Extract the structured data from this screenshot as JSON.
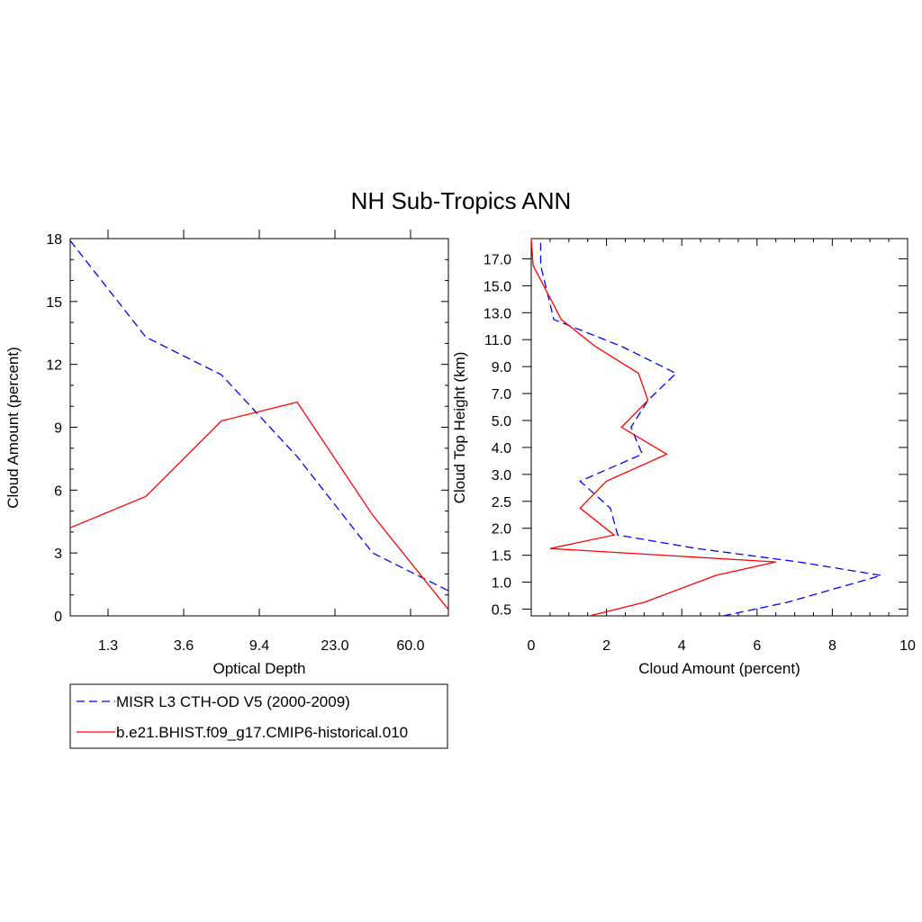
{
  "title": "NH Sub-Tropics ANN",
  "colors": {
    "obs": "#0000ff",
    "model": "#ff0000",
    "axis": "#000000"
  },
  "legend": {
    "placement": "bottom-left",
    "entries": [
      {
        "label": "MISR L3 CTH-OD V5 (2000-2009)",
        "color": "#0000ff",
        "dash": "dashed"
      },
      {
        "label": "b.e21.BHIST.f09_g17.CMIP6-historical.010",
        "color": "#ff0000",
        "dash": "solid"
      }
    ]
  },
  "chart_data": [
    {
      "type": "line",
      "xlabel": "Optical Depth",
      "ylabel": "Cloud Amount (percent)",
      "x_tick_labels": [
        "1.3",
        "3.6",
        "9.4",
        "23.0",
        "60.0"
      ],
      "x_tick_index": [
        0.5,
        1.5,
        2.5,
        3.5,
        4.5
      ],
      "xlim": [
        0,
        5
      ],
      "ylim": [
        0,
        18
      ],
      "y_ticks": [
        0,
        3,
        6,
        9,
        12,
        15,
        18
      ],
      "x_index": [
        0,
        1,
        2,
        3,
        4,
        5
      ],
      "series": [
        {
          "name": "MISR L3 CTH-OD V5 (2000-2009)",
          "values": [
            17.9,
            13.3,
            11.5,
            7.6,
            3.0,
            1.2
          ]
        },
        {
          "name": "b.e21.BHIST.f09_g17.CMIP6-historical.010",
          "values": [
            4.2,
            5.7,
            9.3,
            10.2,
            4.8,
            0.3
          ]
        }
      ]
    },
    {
      "type": "line",
      "xlabel": "Cloud Amount (percent)",
      "ylabel": "Cloud Top Height (km)",
      "xlim": [
        0,
        10
      ],
      "x_ticks": [
        0,
        2,
        4,
        6,
        8,
        10
      ],
      "y_tick_labels": [
        "0.5",
        "1.0",
        "1.5",
        "2.0",
        "2.5",
        "3.0",
        "4.0",
        "5.0",
        "7.0",
        "9.0",
        "11.0",
        "13.0",
        "15.0",
        "17.0"
      ],
      "y_tick_index": [
        0,
        1,
        2,
        3,
        4,
        5,
        6,
        7,
        8,
        9,
        10,
        11,
        12,
        13
      ],
      "ylim_index": [
        -0.25,
        13.75
      ],
      "height_index": [
        -0.25,
        0.25,
        1.25,
        1.75,
        2.25,
        2.75,
        3.75,
        4.75,
        5.75,
        6.75,
        7.75,
        8.75,
        9.75,
        10.75,
        12.75,
        13.75
      ],
      "series": [
        {
          "name": "MISR L3 CTH-OD V5 (2000-2009)",
          "values": [
            5.1,
            6.8,
            9.3,
            7.1,
            4.4,
            2.3,
            2.1,
            1.3,
            2.95,
            2.65,
            3.1,
            3.85,
            2.4,
            0.6,
            0.25,
            0.25
          ]
        },
        {
          "name": "b.e21.BHIST.f09_g17.CMIP6-historical.010",
          "values": [
            1.55,
            3.0,
            4.9,
            6.5,
            0.5,
            2.2,
            1.3,
            2.0,
            3.6,
            2.4,
            3.1,
            2.85,
            1.7,
            0.8,
            0.05,
            0.0
          ]
        }
      ]
    }
  ]
}
